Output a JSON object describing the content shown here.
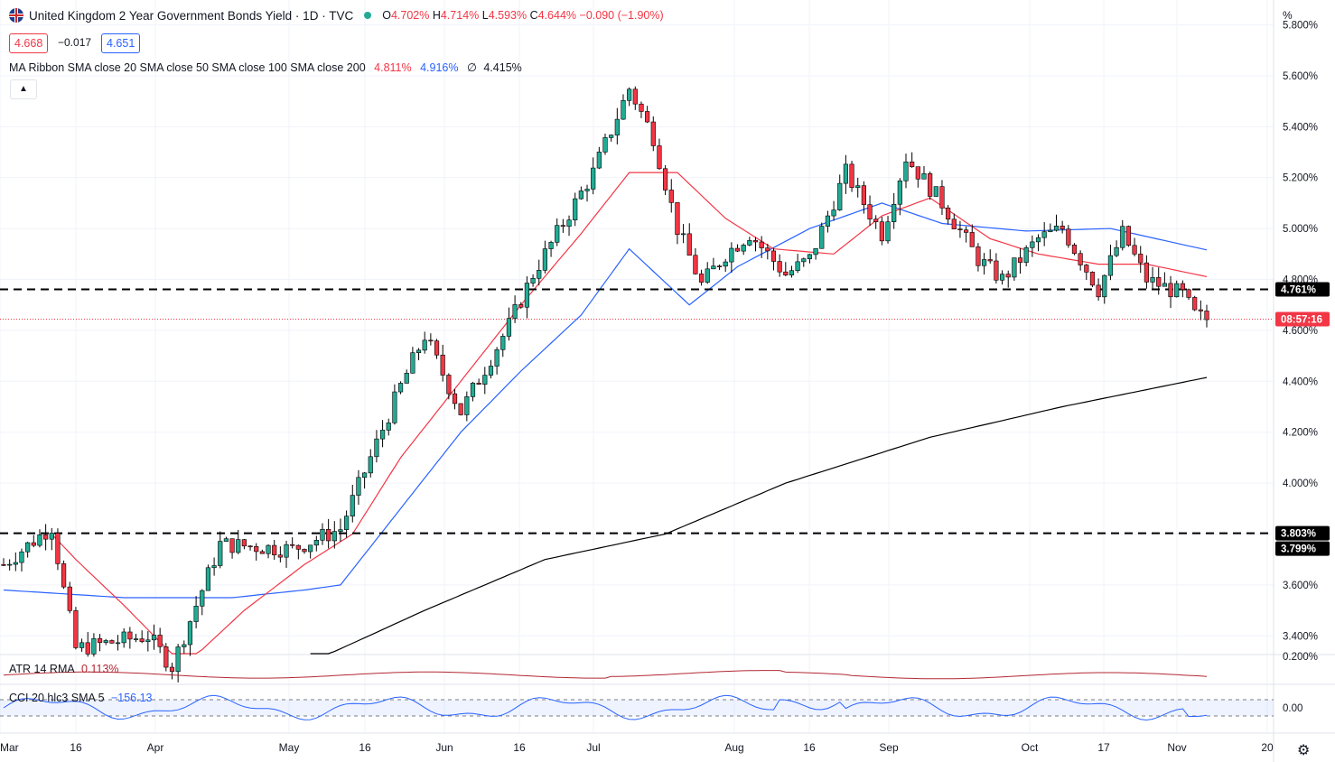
{
  "header": {
    "title": "United Kingdom 2 Year Government Bonds Yield · 1D · TVC",
    "open_label": "O",
    "open": "4.702%",
    "high_label": "H",
    "high": "4.714%",
    "low_label": "L",
    "low": "4.593%",
    "close_label": "C",
    "close": "4.644%",
    "change": "−0.090 (−1.90%)"
  },
  "quote": {
    "bid": "4.668",
    "spread": "−0.017",
    "ask": "4.651"
  },
  "ma_ribbon": {
    "label": "MA Ribbon SMA close 20 SMA close 50 SMA close 100 SMA close 200",
    "v1": "4.811%",
    "v2": "4.916%",
    "v3": "∅",
    "v4": "4.415%"
  },
  "atr": {
    "label": "ATR 14 RMA",
    "value": "0.113%"
  },
  "cci": {
    "label": "CCI 20 hlc3 SMA 5",
    "value": "−156.13"
  },
  "axis_unit_label": "%",
  "colors": {
    "up": "#22ab94",
    "down": "#f23645",
    "sma20": "#f23645",
    "sma50": "#2962ff",
    "sma200": "#000000",
    "cci": "#2962ff",
    "atr": "#b22833"
  },
  "chart_data": {
    "type": "candlestick",
    "y_unit": "%",
    "ylim": [
      3.33,
      5.88
    ],
    "y_ticks": [
      "5.800%",
      "5.600%",
      "5.400%",
      "5.200%",
      "5.000%",
      "4.800%",
      "4.600%",
      "4.400%",
      "4.200%",
      "4.000%",
      "3.800%",
      "3.600%",
      "3.400%"
    ],
    "x_ticks": [
      "Mar",
      "16",
      "Apr",
      "May",
      "16",
      "Jun",
      "16",
      "Jul",
      "Aug",
      "16",
      "Sep",
      "Oct",
      "17",
      "Nov",
      "20"
    ],
    "price_labels": {
      "level_high": "4.761%",
      "countdown": "08:57:16",
      "level_low_a": "3.803%",
      "level_low_b": "3.799%"
    },
    "horizontal_levels": [
      4.761,
      3.803
    ],
    "last_price": 4.644,
    "atr_ticks": [
      "0.200%"
    ],
    "cci_ticks": [
      "0.00"
    ],
    "keypoints": [
      [
        0,
        3.68
      ],
      [
        8,
        3.83
      ],
      [
        10,
        3.58
      ],
      [
        12,
        3.35
      ],
      [
        24,
        3.4
      ],
      [
        28,
        3.28
      ],
      [
        36,
        3.76
      ],
      [
        48,
        3.74
      ],
      [
        56,
        3.82
      ],
      [
        66,
        4.38
      ],
      [
        70,
        4.58
      ],
      [
        76,
        4.28
      ],
      [
        84,
        4.62
      ],
      [
        88,
        4.82
      ],
      [
        98,
        5.22
      ],
      [
        104,
        5.55
      ],
      [
        108,
        5.36
      ],
      [
        112,
        5.0
      ],
      [
        116,
        4.78
      ],
      [
        120,
        4.9
      ],
      [
        124,
        4.98
      ],
      [
        130,
        4.82
      ],
      [
        134,
        4.88
      ],
      [
        140,
        5.22
      ],
      [
        146,
        4.98
      ],
      [
        150,
        5.28
      ],
      [
        156,
        5.1
      ],
      [
        162,
        4.88
      ],
      [
        166,
        4.8
      ],
      [
        172,
        4.96
      ],
      [
        176,
        5.0
      ],
      [
        182,
        4.76
      ],
      [
        186,
        4.98
      ],
      [
        190,
        4.8
      ],
      [
        196,
        4.74
      ],
      [
        198,
        4.66
      ],
      [
        200,
        4.644
      ]
    ],
    "sma20_keypoints": [
      [
        8,
        3.8
      ],
      [
        12,
        3.7
      ],
      [
        20,
        3.52
      ],
      [
        30,
        3.28
      ],
      [
        40,
        3.5
      ],
      [
        50,
        3.68
      ],
      [
        58,
        3.8
      ],
      [
        66,
        4.1
      ],
      [
        76,
        4.4
      ],
      [
        86,
        4.7
      ],
      [
        96,
        4.98
      ],
      [
        104,
        5.22
      ],
      [
        112,
        5.22
      ],
      [
        120,
        5.04
      ],
      [
        128,
        4.92
      ],
      [
        138,
        4.9
      ],
      [
        146,
        5.05
      ],
      [
        154,
        5.12
      ],
      [
        164,
        4.96
      ],
      [
        172,
        4.9
      ],
      [
        182,
        4.86
      ],
      [
        190,
        4.86
      ],
      [
        200,
        4.811
      ]
    ],
    "sma50_keypoints": [
      [
        0,
        3.58
      ],
      [
        20,
        3.55
      ],
      [
        38,
        3.55
      ],
      [
        50,
        3.58
      ],
      [
        56,
        3.6
      ],
      [
        66,
        3.9
      ],
      [
        76,
        4.2
      ],
      [
        86,
        4.44
      ],
      [
        96,
        4.66
      ],
      [
        104,
        4.92
      ],
      [
        114,
        4.7
      ],
      [
        122,
        4.85
      ],
      [
        134,
        5.0
      ],
      [
        146,
        5.1
      ],
      [
        156,
        5.02
      ],
      [
        170,
        4.99
      ],
      [
        184,
        5.0
      ],
      [
        200,
        4.916
      ]
    ],
    "sma200_keypoints": [
      [
        44,
        3.22
      ],
      [
        70,
        3.5
      ],
      [
        90,
        3.7
      ],
      [
        110,
        3.8
      ],
      [
        130,
        4.0
      ],
      [
        154,
        4.18
      ],
      [
        176,
        4.3
      ],
      [
        200,
        4.415
      ]
    ]
  }
}
